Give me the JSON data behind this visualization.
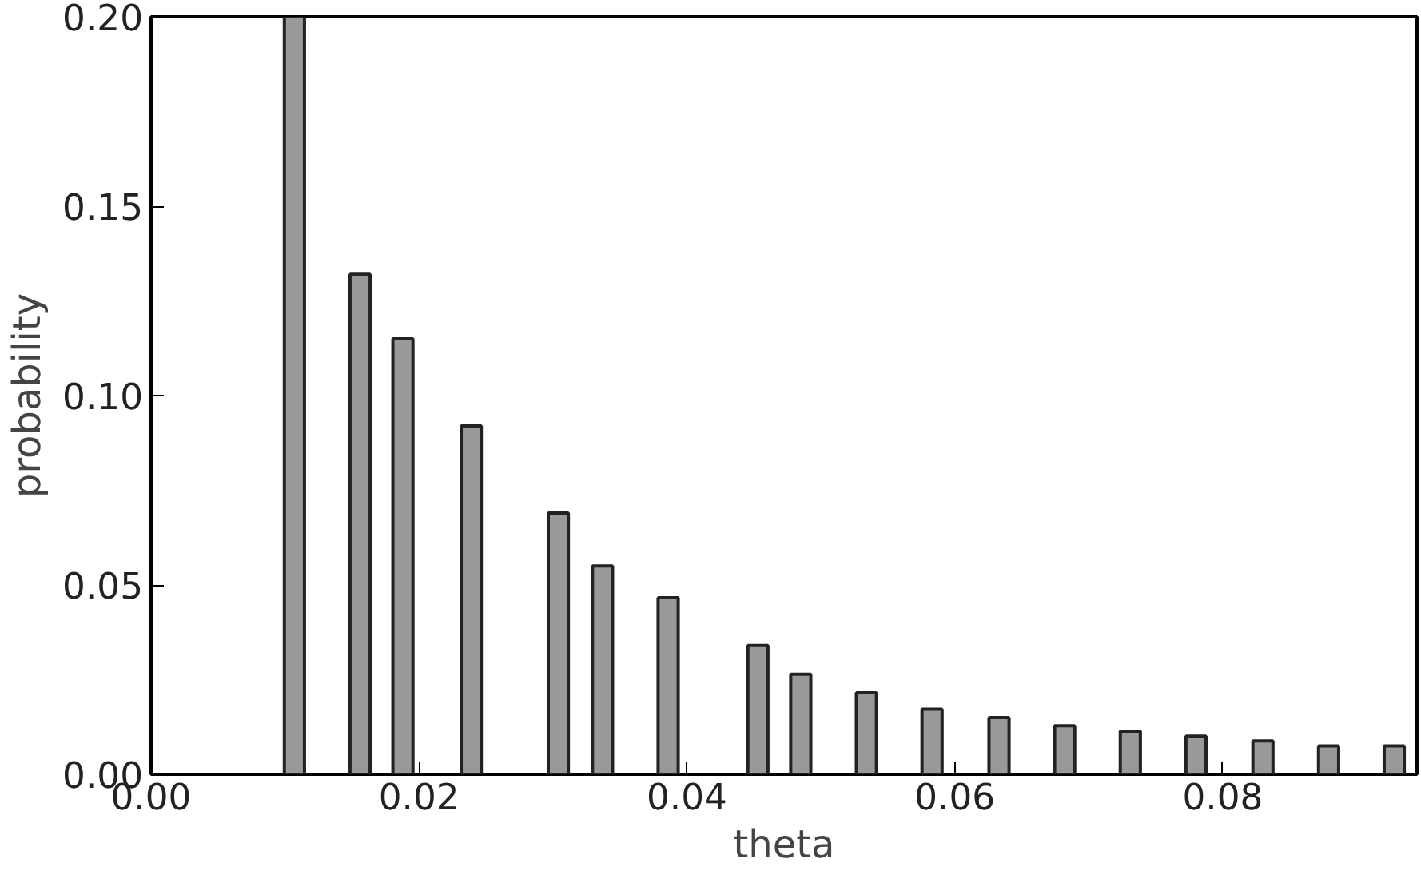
{
  "chart_data": {
    "type": "bar",
    "xlabel": "theta",
    "ylabel": "probability",
    "x": [
      0.0107,
      0.0156,
      0.0188,
      0.0239,
      0.0304,
      0.0337,
      0.0386,
      0.0453,
      0.0485,
      0.0534,
      0.0583,
      0.0633,
      0.0682,
      0.0731,
      0.078,
      0.083,
      0.0879,
      0.0928
    ],
    "values": [
      0.2,
      0.132,
      0.115,
      0.092,
      0.069,
      0.055,
      0.0466,
      0.034,
      0.0264,
      0.0215,
      0.0172,
      0.015,
      0.0128,
      0.0114,
      0.0101,
      0.0088,
      0.0075,
      0.0075
    ],
    "color": "#999999",
    "xlim": [
      0,
      0.0945
    ],
    "ylim": [
      0,
      0.2
    ],
    "xticks": [
      {
        "value": 0,
        "label": "0.00"
      },
      {
        "value": 0.02,
        "label": "0.02"
      },
      {
        "value": 0.04,
        "label": "0.04"
      },
      {
        "value": 0.06,
        "label": "0.06"
      },
      {
        "value": 0.08,
        "label": "0.08"
      }
    ],
    "yticks": [
      {
        "value": 0,
        "label": "0.00"
      },
      {
        "value": 0.05,
        "label": "0.05"
      },
      {
        "value": 0.1,
        "label": "0.10"
      },
      {
        "value": 0.15,
        "label": "0.15"
      },
      {
        "value": 0.2,
        "label": "0.20"
      }
    ],
    "grid": false
  }
}
